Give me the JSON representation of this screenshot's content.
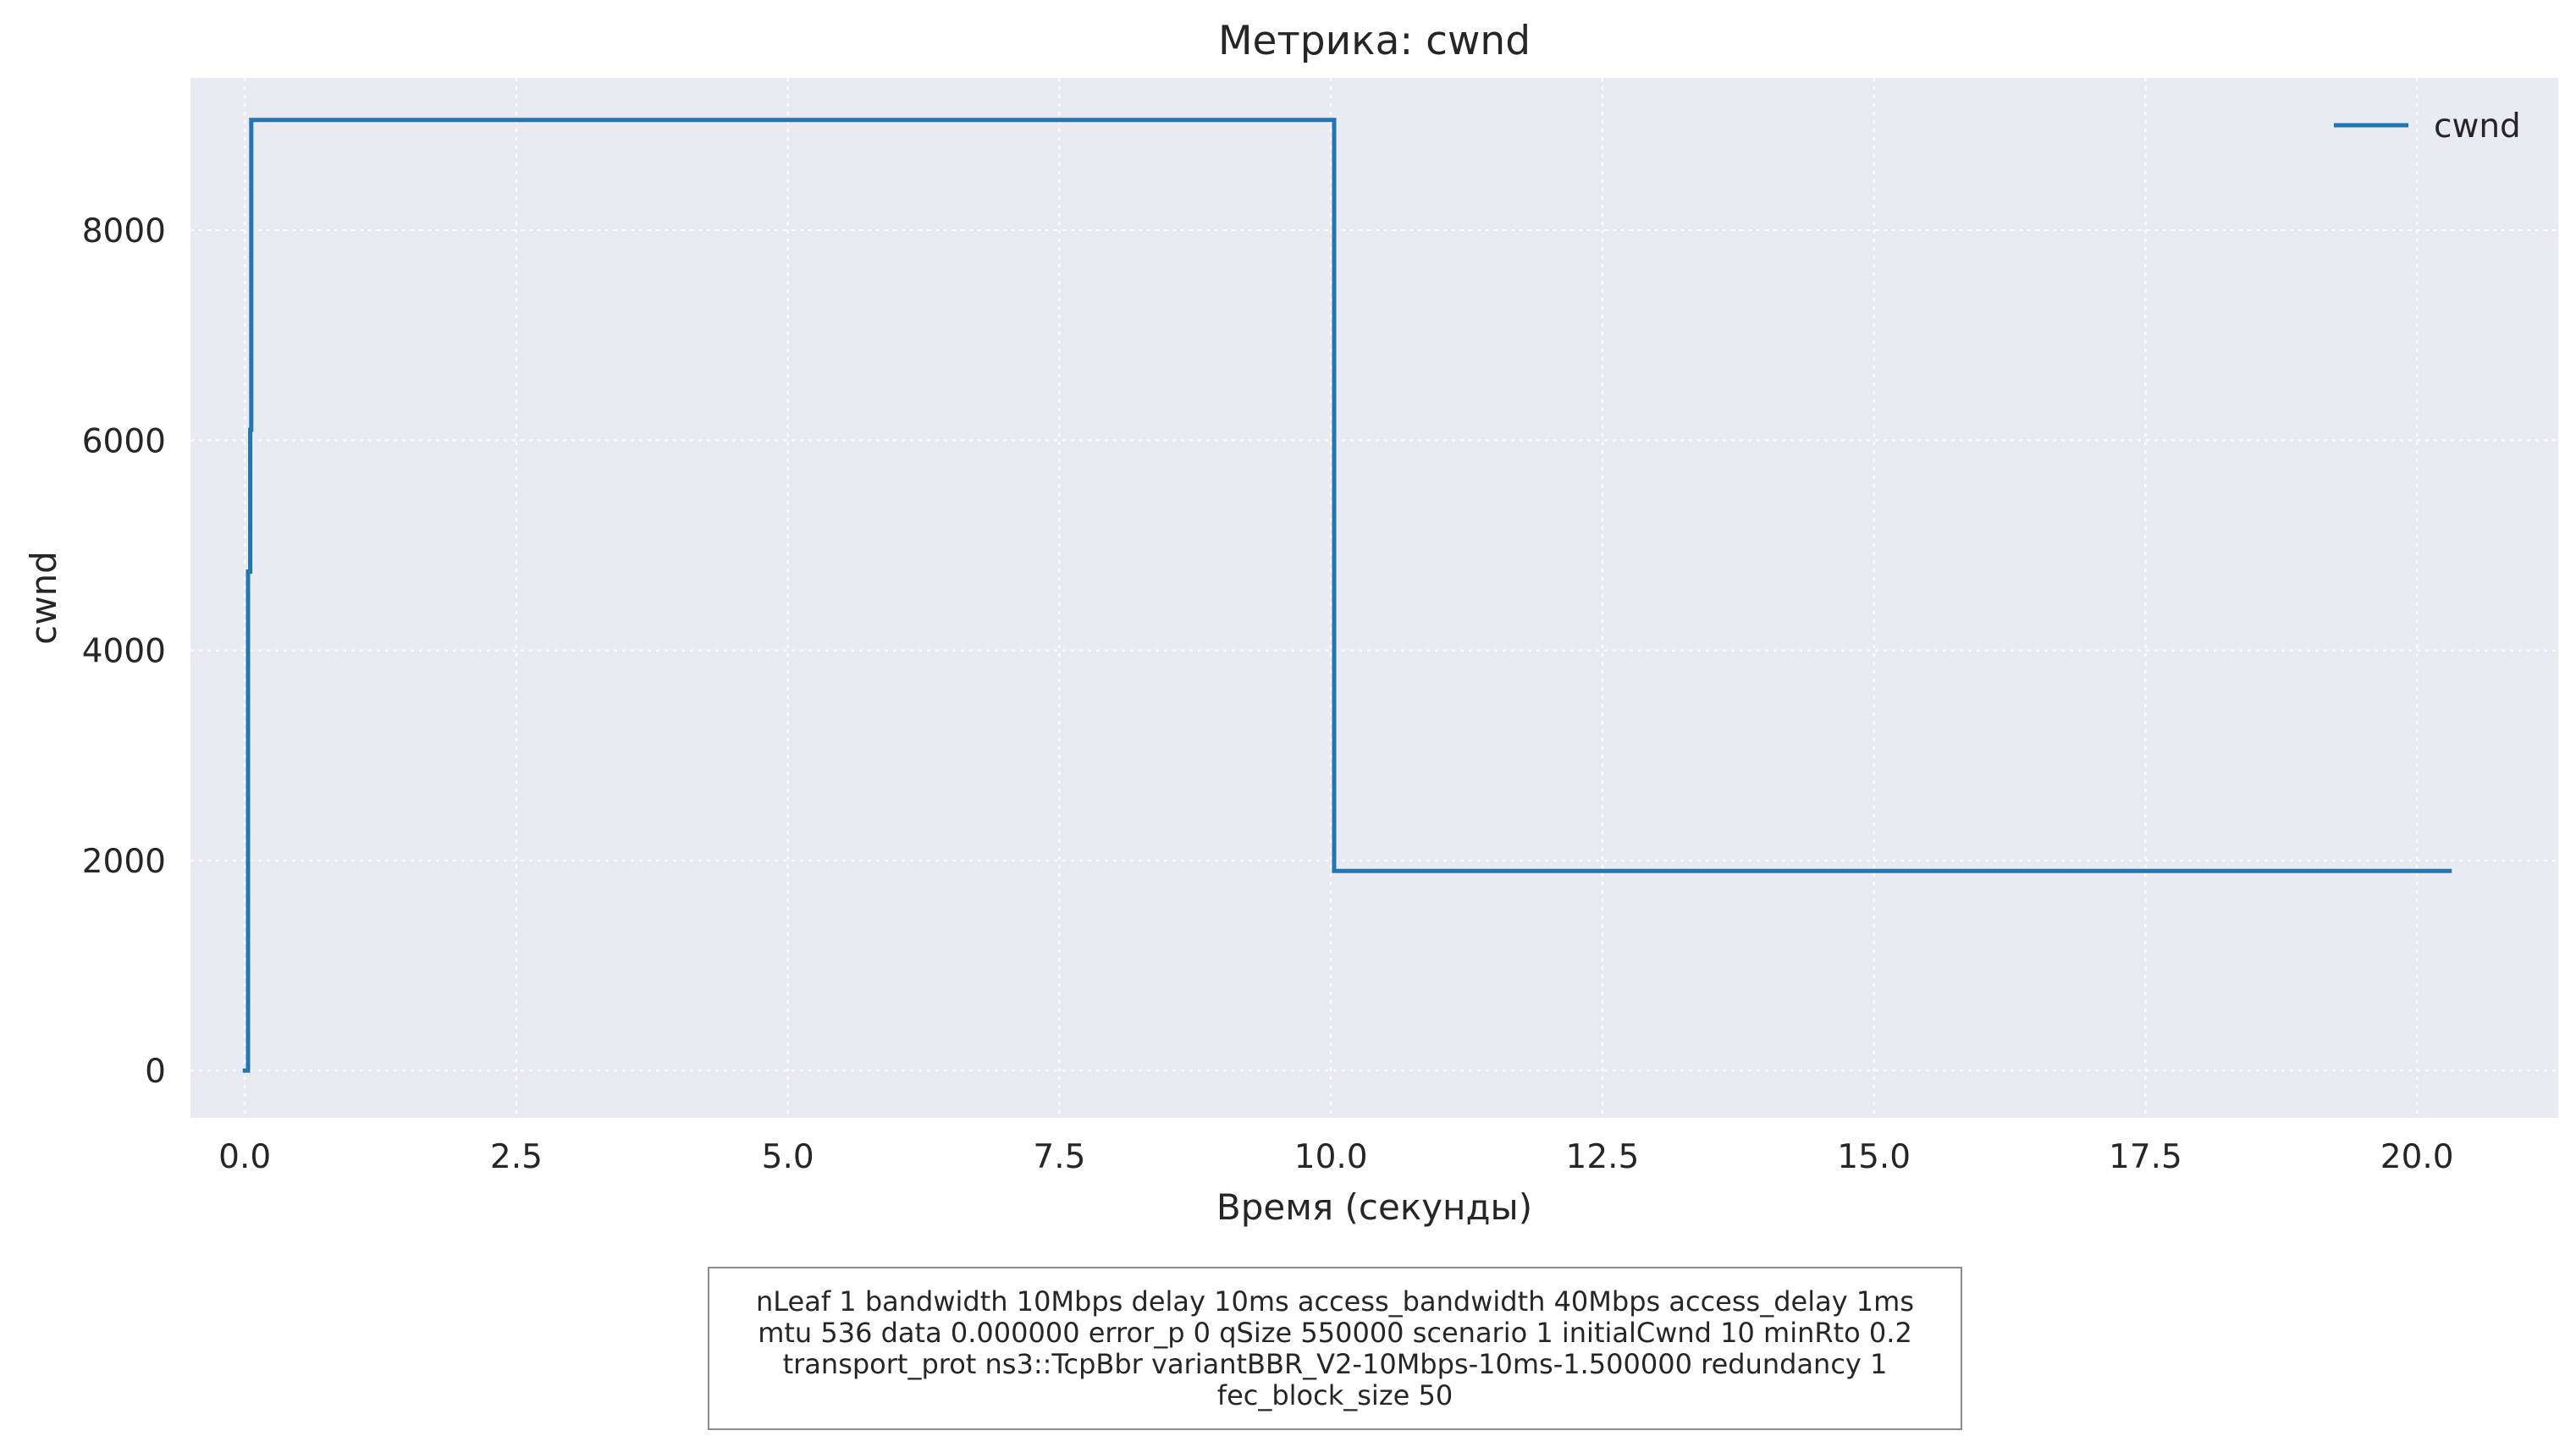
{
  "chart_data": {
    "type": "line",
    "title": "Метрика: cwnd",
    "xlabel": "Время (секунды)",
    "ylabel": "cwnd",
    "xlim": [
      -0.5,
      21.3
    ],
    "ylim": [
      -450,
      9450
    ],
    "xticks": [
      0.0,
      2.5,
      5.0,
      7.5,
      10.0,
      12.5,
      15.0,
      17.5,
      20.0
    ],
    "xtick_labels": [
      "0.0",
      "2.5",
      "5.0",
      "7.5",
      "10.0",
      "12.5",
      "15.0",
      "17.5",
      "20.0"
    ],
    "yticks": [
      0,
      2000,
      4000,
      6000,
      8000
    ],
    "ytick_labels": [
      "0",
      "2000",
      "4000",
      "6000",
      "8000"
    ],
    "grid": true,
    "legend_position": "top-right",
    "series": [
      {
        "name": "cwnd",
        "color": "#1f77b4",
        "step": true,
        "x": [
          0.0,
          0.02,
          0.03,
          0.04,
          0.05,
          0.06,
          10.03,
          20.3
        ],
        "y": [
          0,
          0,
          4750,
          4750,
          6100,
          9050,
          1900,
          1900
        ]
      }
    ]
  },
  "parameters_box": {
    "text": "nLeaf 1 bandwidth 10Mbps delay  10ms access_bandwidth 40Mbps access_delay 1ms mtu 536 data  0.000000 error_p 0 qSize 550000 scenario 1 initialCwnd  10 minRto 0.2 transport_prot ns3::TcpBbr variantBBR_V2-10Mbps-10ms-1.500000 redundancy 1 fec_block_size 50"
  },
  "colors": {
    "plot_background": "#eaeaf2",
    "grid": "#ffffff",
    "line": "#1f77b4",
    "text": "#262626"
  }
}
